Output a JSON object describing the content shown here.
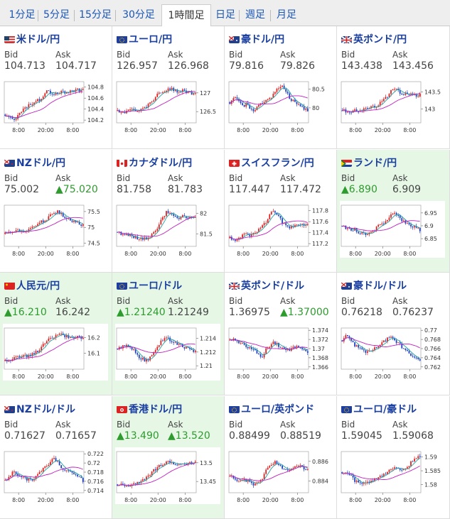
{
  "tabs": [
    {
      "label": "1分足",
      "active": false
    },
    {
      "label": "5分足",
      "active": false
    },
    {
      "label": "15分足",
      "active": false
    },
    {
      "label": "30分足",
      "active": false
    },
    {
      "label": "1時間足",
      "active": true
    },
    {
      "label": "日足",
      "active": false
    },
    {
      "label": "週足",
      "active": false
    },
    {
      "label": "月足",
      "active": false
    }
  ],
  "labels": {
    "bid": "Bid",
    "ask": "Ask"
  },
  "colors": {
    "up": "#e02020",
    "down": "#2040c0",
    "ma": "#c020c0",
    "ma2": "#20a0a0",
    "rise_text": "#2e9b2e",
    "pair_text": "#1a3fa0"
  },
  "pairs": [
    {
      "name": "米ドル/円",
      "flag": "us",
      "bid": "104.713",
      "ask": "104.717",
      "bid_up": false,
      "ask_up": false,
      "hl": false,
      "chart_data": {
        "type": "candlestick",
        "x_ticks": [
          "8:00",
          "20:00",
          "8:00"
        ],
        "y_ticks": [
          "104.8",
          "104.6",
          "104.4",
          "104.2"
        ],
        "ylim": [
          104.15,
          104.9
        ],
        "shape": [
          0.2,
          0.12,
          0.08,
          0.15,
          0.3,
          0.4,
          0.42,
          0.5,
          0.55,
          0.6,
          0.8,
          0.75,
          0.7,
          0.72,
          0.75,
          0.74,
          0.76,
          0.78,
          0.8,
          0.82
        ]
      }
    },
    {
      "name": "ユーロ/円",
      "flag": "eu",
      "bid": "126.957",
      "ask": "126.968",
      "bid_up": false,
      "ask_up": false,
      "hl": false,
      "chart_data": {
        "type": "candlestick",
        "x_ticks": [
          "8:00",
          "20:00",
          "8:00"
        ],
        "y_ticks": [
          "127",
          "126.5"
        ],
        "ylim": [
          126.2,
          127.3
        ],
        "shape": [
          0.3,
          0.28,
          0.25,
          0.3,
          0.32,
          0.3,
          0.35,
          0.4,
          0.5,
          0.6,
          0.7,
          0.72,
          0.8,
          0.85,
          0.78,
          0.76,
          0.8,
          0.74,
          0.72,
          0.7
        ]
      }
    },
    {
      "name": "豪ドル/円",
      "flag": "au",
      "bid": "79.816",
      "ask": "79.826",
      "bid_up": false,
      "ask_up": false,
      "hl": false,
      "chart_data": {
        "type": "candlestick",
        "x_ticks": [
          "8:00",
          "20:00",
          "8:00"
        ],
        "y_ticks": [
          "80.5",
          "80"
        ],
        "ylim": [
          79.6,
          80.7
        ],
        "shape": [
          0.5,
          0.6,
          0.55,
          0.4,
          0.45,
          0.35,
          0.3,
          0.4,
          0.5,
          0.55,
          0.6,
          0.75,
          0.85,
          0.9,
          0.7,
          0.55,
          0.5,
          0.4,
          0.35,
          0.3
        ]
      }
    },
    {
      "name": "英ポンド/円",
      "flag": "gb",
      "bid": "143.438",
      "ask": "143.456",
      "bid_up": false,
      "ask_up": false,
      "hl": false,
      "chart_data": {
        "type": "candlestick",
        "x_ticks": [
          "8:00",
          "20:00",
          "8:00"
        ],
        "y_ticks": [
          "143.5",
          "143"
        ],
        "ylim": [
          142.6,
          143.8
        ],
        "shape": [
          0.3,
          0.28,
          0.25,
          0.3,
          0.28,
          0.32,
          0.35,
          0.4,
          0.35,
          0.45,
          0.55,
          0.65,
          0.8,
          0.85,
          0.75,
          0.7,
          0.72,
          0.68,
          0.65,
          0.7
        ]
      }
    },
    {
      "name": "NZドル/円",
      "flag": "nz",
      "bid": "75.002",
      "ask": "75.020",
      "bid_up": false,
      "ask_up": true,
      "hl": false,
      "chart_data": {
        "type": "candlestick",
        "x_ticks": [
          "8:00",
          "20:00",
          "8:00"
        ],
        "y_ticks": [
          "75.5",
          "75",
          "74.5"
        ],
        "ylim": [
          74.4,
          75.7
        ],
        "shape": [
          0.3,
          0.35,
          0.4,
          0.38,
          0.35,
          0.4,
          0.45,
          0.5,
          0.55,
          0.6,
          0.65,
          0.75,
          0.8,
          0.85,
          0.75,
          0.7,
          0.65,
          0.6,
          0.55,
          0.5
        ]
      }
    },
    {
      "name": "カナダドル/円",
      "flag": "ca",
      "bid": "81.758",
      "ask": "81.783",
      "bid_up": false,
      "ask_up": false,
      "hl": false,
      "chart_data": {
        "type": "candlestick",
        "x_ticks": [
          "8:00",
          "20:00",
          "8:00"
        ],
        "y_ticks": [
          "82",
          "81.5"
        ],
        "ylim": [
          81.2,
          82.2
        ],
        "shape": [
          0.35,
          0.3,
          0.28,
          0.25,
          0.22,
          0.2,
          0.18,
          0.2,
          0.25,
          0.35,
          0.5,
          0.7,
          0.85,
          0.8,
          0.75,
          0.7,
          0.72,
          0.68,
          0.7,
          0.72
        ]
      }
    },
    {
      "name": "スイスフラン/円",
      "flag": "ch",
      "bid": "117.447",
      "ask": "117.472",
      "bid_up": false,
      "ask_up": false,
      "hl": false,
      "chart_data": {
        "type": "candlestick",
        "x_ticks": [
          "8:00",
          "20:00",
          "8:00"
        ],
        "y_ticks": [
          "117.8",
          "117.6",
          "117.4",
          "117.2"
        ],
        "ylim": [
          117.15,
          117.9
        ],
        "shape": [
          0.2,
          0.15,
          0.2,
          0.25,
          0.3,
          0.28,
          0.35,
          0.4,
          0.5,
          0.6,
          0.8,
          0.85,
          0.7,
          0.55,
          0.5,
          0.45,
          0.5,
          0.55,
          0.5,
          0.52
        ]
      }
    },
    {
      "name": "ランド/円",
      "flag": "za",
      "bid": "6.890",
      "ask": "6.909",
      "bid_up": true,
      "ask_up": false,
      "hl": true,
      "chart_data": {
        "type": "candlestick",
        "x_ticks": [
          "8:00",
          "20:00",
          "8:00"
        ],
        "y_ticks": [
          "6.95",
          "6.9",
          "6.85"
        ],
        "ylim": [
          6.82,
          6.98
        ],
        "shape": [
          0.5,
          0.45,
          0.4,
          0.42,
          0.35,
          0.3,
          0.32,
          0.35,
          0.4,
          0.5,
          0.55,
          0.6,
          0.75,
          0.8,
          0.7,
          0.6,
          0.55,
          0.5,
          0.45,
          0.4
        ]
      }
    },
    {
      "name": "人民元/円",
      "flag": "cn",
      "bid": "16.210",
      "ask": "16.242",
      "bid_up": true,
      "ask_up": false,
      "hl": true,
      "chart_data": {
        "type": "candlestick",
        "x_ticks": [
          "8:00",
          "20:00",
          "8:00"
        ],
        "y_ticks": [
          "16.2",
          "16.1"
        ],
        "ylim": [
          16.0,
          16.26
        ],
        "shape": [
          0.2,
          0.22,
          0.25,
          0.28,
          0.3,
          0.32,
          0.35,
          0.38,
          0.45,
          0.55,
          0.65,
          0.75,
          0.8,
          0.85,
          0.82,
          0.8,
          0.78,
          0.8,
          0.78,
          0.76
        ]
      }
    },
    {
      "name": "ユーロ/ドル",
      "flag": "eu",
      "bid": "1.21240",
      "ask": "1.21249",
      "bid_up": true,
      "ask_up": false,
      "hl": true,
      "chart_data": {
        "type": "candlestick",
        "x_ticks": [
          "8:00",
          "20:00",
          "8:00"
        ],
        "y_ticks": [
          "1.214",
          "1.212",
          "1.21"
        ],
        "ylim": [
          1.2095,
          1.2155
        ],
        "shape": [
          0.5,
          0.55,
          0.6,
          0.5,
          0.45,
          0.3,
          0.25,
          0.2,
          0.3,
          0.45,
          0.6,
          0.7,
          0.8,
          0.7,
          0.65,
          0.6,
          0.55,
          0.5,
          0.45,
          0.42
        ]
      }
    },
    {
      "name": "英ポンド/ドル",
      "flag": "gb",
      "bid": "1.36975",
      "ask": "1.37000",
      "bid_up": false,
      "ask_up": true,
      "hl": false,
      "chart_data": {
        "type": "candlestick",
        "x_ticks": [
          "8:00",
          "20:00",
          "8:00"
        ],
        "y_ticks": [
          "1.374",
          "1.372",
          "1.37",
          "1.368",
          "1.366"
        ],
        "ylim": [
          1.3655,
          1.3745
        ],
        "shape": [
          0.7,
          0.75,
          0.65,
          0.6,
          0.55,
          0.5,
          0.45,
          0.35,
          0.3,
          0.5,
          0.6,
          0.65,
          0.55,
          0.5,
          0.45,
          0.5,
          0.55,
          0.5,
          0.45,
          0.42
        ]
      }
    },
    {
      "name": "豪ドル/ドル",
      "flag": "au",
      "bid": "0.76218",
      "ask": "0.76237",
      "bid_up": false,
      "ask_up": false,
      "hl": false,
      "chart_data": {
        "type": "candlestick",
        "x_ticks": [
          "8:00",
          "20:00",
          "8:00"
        ],
        "y_ticks": [
          "0.77",
          "0.768",
          "0.766",
          "0.764",
          "0.762"
        ],
        "ylim": [
          0.7615,
          0.7705
        ],
        "shape": [
          0.7,
          0.8,
          0.75,
          0.6,
          0.5,
          0.45,
          0.4,
          0.45,
          0.5,
          0.55,
          0.65,
          0.75,
          0.8,
          0.7,
          0.6,
          0.5,
          0.4,
          0.3,
          0.25,
          0.2
        ]
      }
    },
    {
      "name": "NZドル/ドル",
      "flag": "nz",
      "bid": "0.71627",
      "ask": "0.71657",
      "bid_up": false,
      "ask_up": false,
      "hl": false,
      "chart_data": {
        "type": "candlestick",
        "x_ticks": [
          "8:00",
          "20:00",
          "8:00"
        ],
        "y_ticks": [
          "0.722",
          "0.72",
          "0.718",
          "0.716",
          "0.714"
        ],
        "ylim": [
          0.7135,
          0.7225
        ],
        "shape": [
          0.3,
          0.4,
          0.5,
          0.45,
          0.4,
          0.35,
          0.3,
          0.35,
          0.45,
          0.55,
          0.65,
          0.75,
          0.85,
          0.7,
          0.6,
          0.55,
          0.5,
          0.45,
          0.35,
          0.3
        ]
      }
    },
    {
      "name": "香港ドル/円",
      "flag": "hk",
      "bid": "13.490",
      "ask": "13.520",
      "bid_up": true,
      "ask_up": true,
      "hl": true,
      "chart_data": {
        "type": "candlestick",
        "x_ticks": [
          "8:00",
          "20:00",
          "8:00"
        ],
        "y_ticks": [
          "13.5",
          "13.45"
        ],
        "ylim": [
          13.42,
          13.53
        ],
        "shape": [
          0.2,
          0.18,
          0.15,
          0.2,
          0.22,
          0.25,
          0.3,
          0.35,
          0.45,
          0.55,
          0.65,
          0.7,
          0.75,
          0.72,
          0.7,
          0.72,
          0.7,
          0.72,
          0.74,
          0.76
        ]
      }
    },
    {
      "name": "ユーロ/英ポンド",
      "flag": "eu",
      "bid": "0.88499",
      "ask": "0.88519",
      "bid_up": false,
      "ask_up": false,
      "hl": false,
      "chart_data": {
        "type": "candlestick",
        "x_ticks": [
          "8:00",
          "20:00",
          "8:00"
        ],
        "y_ticks": [
          "0.886",
          "0.884"
        ],
        "ylim": [
          0.8828,
          0.887
        ],
        "shape": [
          0.4,
          0.35,
          0.3,
          0.35,
          0.3,
          0.25,
          0.2,
          0.25,
          0.3,
          0.6,
          0.7,
          0.75,
          0.65,
          0.6,
          0.55,
          0.6,
          0.65,
          0.7,
          0.6,
          0.55
        ]
      }
    },
    {
      "name": "ユーロ/豪ドル",
      "flag": "eu",
      "bid": "1.59045",
      "ask": "1.59068",
      "bid_up": false,
      "ask_up": false,
      "hl": false,
      "chart_data": {
        "type": "candlestick",
        "x_ticks": [
          "8:00",
          "20:00",
          "8:00"
        ],
        "y_ticks": [
          "1.59",
          "1.585",
          "1.58"
        ],
        "ylim": [
          1.577,
          1.592
        ],
        "shape": [
          0.5,
          0.45,
          0.4,
          0.3,
          0.25,
          0.2,
          0.25,
          0.3,
          0.35,
          0.4,
          0.45,
          0.5,
          0.55,
          0.6,
          0.55,
          0.6,
          0.65,
          0.75,
          0.85,
          0.9
        ]
      }
    }
  ]
}
